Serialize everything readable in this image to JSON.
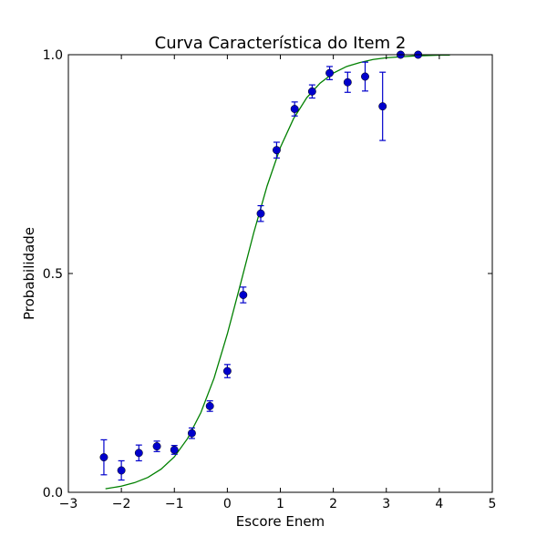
{
  "chart_data": {
    "type": "scatter",
    "title": "Curva Característica do Item 2",
    "xlabel": "Escore Enem",
    "ylabel": "Probabilidade",
    "xlim": [
      -3,
      5
    ],
    "ylim": [
      0,
      1
    ],
    "xticks": [
      -3,
      -2,
      -1,
      0,
      1,
      2,
      3,
      4,
      5
    ],
    "xtick_labels": [
      "−3",
      "−2",
      "−1",
      "0",
      "1",
      "2",
      "3",
      "4",
      "5"
    ],
    "yticks": [
      0,
      0.5,
      1
    ],
    "ytick_labels": [
      "0.0",
      "0.5",
      "1.0"
    ],
    "grid": false,
    "series": [
      {
        "kind": "points_with_error_bars",
        "color": "#0000cc",
        "x": [
          -2.33,
          -2.0,
          -1.67,
          -1.33,
          -1.0,
          -0.67,
          -0.33,
          0.0,
          0.3,
          0.63,
          0.93,
          1.27,
          1.6,
          1.93,
          2.27,
          2.6,
          2.93,
          3.27,
          3.6
        ],
        "y": [
          0.08,
          0.05,
          0.09,
          0.105,
          0.097,
          0.135,
          0.197,
          0.277,
          0.451,
          0.637,
          0.782,
          0.876,
          0.916,
          0.958,
          0.937,
          0.95,
          0.882,
          1.0,
          1.0
        ],
        "yerr": [
          0.04,
          0.022,
          0.018,
          0.012,
          0.01,
          0.012,
          0.012,
          0.015,
          0.018,
          0.018,
          0.018,
          0.016,
          0.015,
          0.015,
          0.023,
          0.033,
          0.078,
          0.004,
          0.004
        ]
      },
      {
        "kind": "curve",
        "color": "#008000",
        "x": [
          -2.3,
          -2.0,
          -1.75,
          -1.5,
          -1.25,
          -1.0,
          -0.75,
          -0.5,
          -0.25,
          0.0,
          0.25,
          0.5,
          0.75,
          1.0,
          1.25,
          1.5,
          1.75,
          2.0,
          2.25,
          2.5,
          2.75,
          3.0,
          3.25,
          3.5,
          3.75,
          4.0,
          4.2
        ],
        "y": [
          0.008,
          0.014,
          0.022,
          0.034,
          0.053,
          0.081,
          0.123,
          0.182,
          0.261,
          0.362,
          0.477,
          0.594,
          0.7,
          0.788,
          0.854,
          0.902,
          0.935,
          0.958,
          0.973,
          0.982,
          0.989,
          0.993,
          0.995,
          0.997,
          0.998,
          0.999,
          0.999
        ]
      }
    ]
  }
}
